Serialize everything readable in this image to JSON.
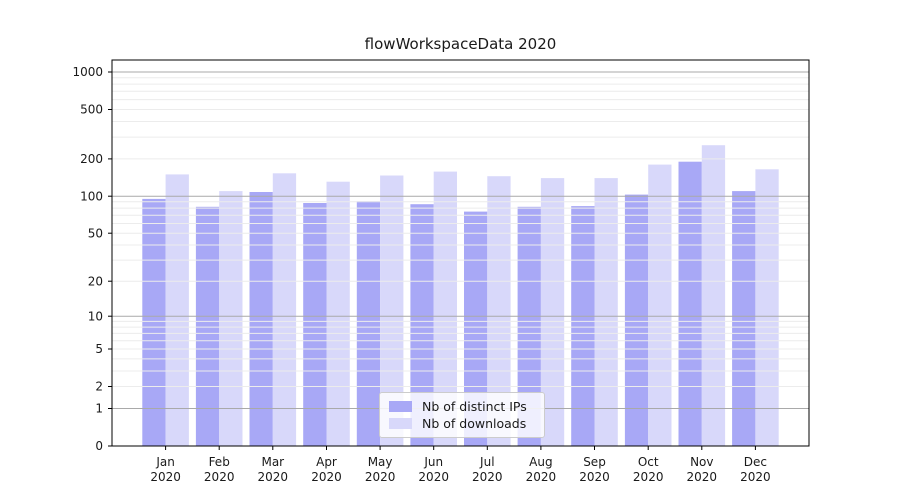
{
  "chart_data": {
    "type": "bar",
    "title": "flowWorkspaceData 2020",
    "year_label": "2020",
    "categories": [
      "Jan",
      "Feb",
      "Mar",
      "Apr",
      "May",
      "Jun",
      "Jul",
      "Aug",
      "Sep",
      "Oct",
      "Nov",
      "Dec"
    ],
    "series": [
      {
        "name": "Nb of distinct IPs",
        "color": "#a8a8f6",
        "values": [
          95,
          82,
          108,
          88,
          91,
          86,
          75,
          82,
          83,
          103,
          190,
          110
        ]
      },
      {
        "name": "Nb of downloads",
        "color": "#d8d8fa",
        "values": [
          150,
          110,
          153,
          131,
          147,
          158,
          145,
          140,
          140,
          180,
          258,
          165
        ]
      }
    ],
    "yticks": [
      0,
      1,
      2,
      5,
      10,
      20,
      50,
      100,
      200,
      500,
      1000
    ],
    "ylim": [
      0,
      1000
    ],
    "yscale": "log1p",
    "grid": "major and minor horizontal gridlines",
    "legend_position": "lower center",
    "colors": {
      "major_gridline": "#a9a9a9",
      "minor_gridline": "#ececec",
      "axis": "#000000",
      "text": "#1a1a1a"
    }
  }
}
